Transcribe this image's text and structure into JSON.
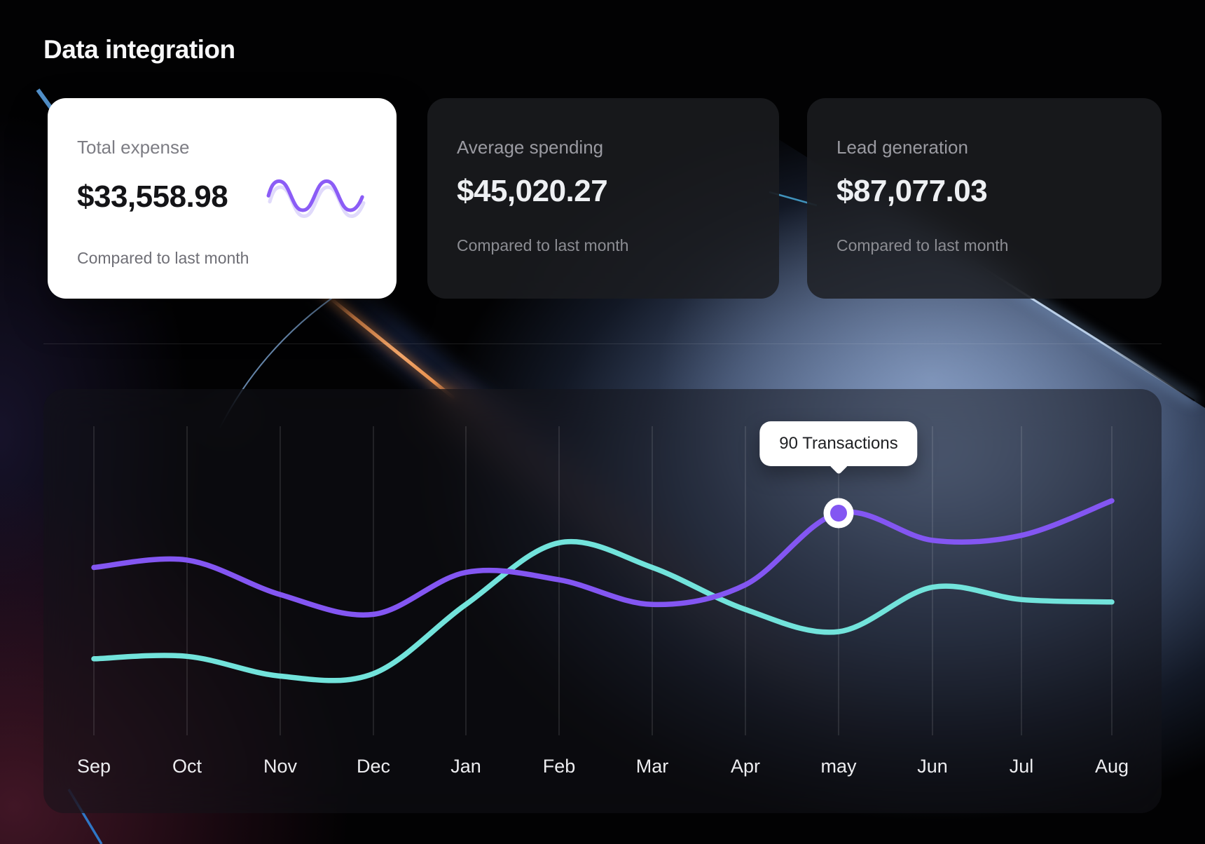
{
  "header": {
    "title": "Data integration"
  },
  "cards": [
    {
      "label": "Total expense",
      "value": "$33,558.98",
      "note": "Compared to last month",
      "variant": "light",
      "icon": "wave-icon"
    },
    {
      "label": "Average spending",
      "value": "$45,020.27",
      "note": "Compared to last month",
      "variant": "dark"
    },
    {
      "label": "Lead generation",
      "value": "$87,077.03",
      "note": "Compared to last month",
      "variant": "dark"
    }
  ],
  "chart_data": {
    "type": "line",
    "title": "",
    "xlabel": "",
    "ylabel": "",
    "categories": [
      "Sep",
      "Oct",
      "Nov",
      "Dec",
      "Jan",
      "Feb",
      "Mar",
      "Apr",
      "may",
      "Jun",
      "Jul",
      "Aug"
    ],
    "series": [
      {
        "name": "transactions-primary",
        "color": "#8356F2",
        "values": [
          68,
          71,
          57,
          49,
          66,
          63,
          53,
          61,
          90,
          79,
          81,
          95
        ]
      },
      {
        "name": "transactions-secondary",
        "color": "#72E3DB",
        "values": [
          31,
          32,
          24,
          25,
          53,
          78,
          68,
          51,
          42,
          60,
          55,
          54
        ]
      }
    ],
    "ylim": [
      0,
      125
    ],
    "grid": "vertical-only",
    "legend": "none",
    "annotations": [
      {
        "type": "tooltip",
        "label": "90 Transactions",
        "category": "may",
        "series": 0,
        "value": 90
      }
    ]
  },
  "colors": {
    "accent_purple": "#8356F2",
    "accent_cyan": "#72E3DB",
    "wave_icon_front": "#8B5CF6",
    "wave_icon_back": "#E0DAFB",
    "card_light_bg": "#FFFFFF",
    "glow_blue": "#7C98C8",
    "beam_orange": "#F0A468"
  }
}
